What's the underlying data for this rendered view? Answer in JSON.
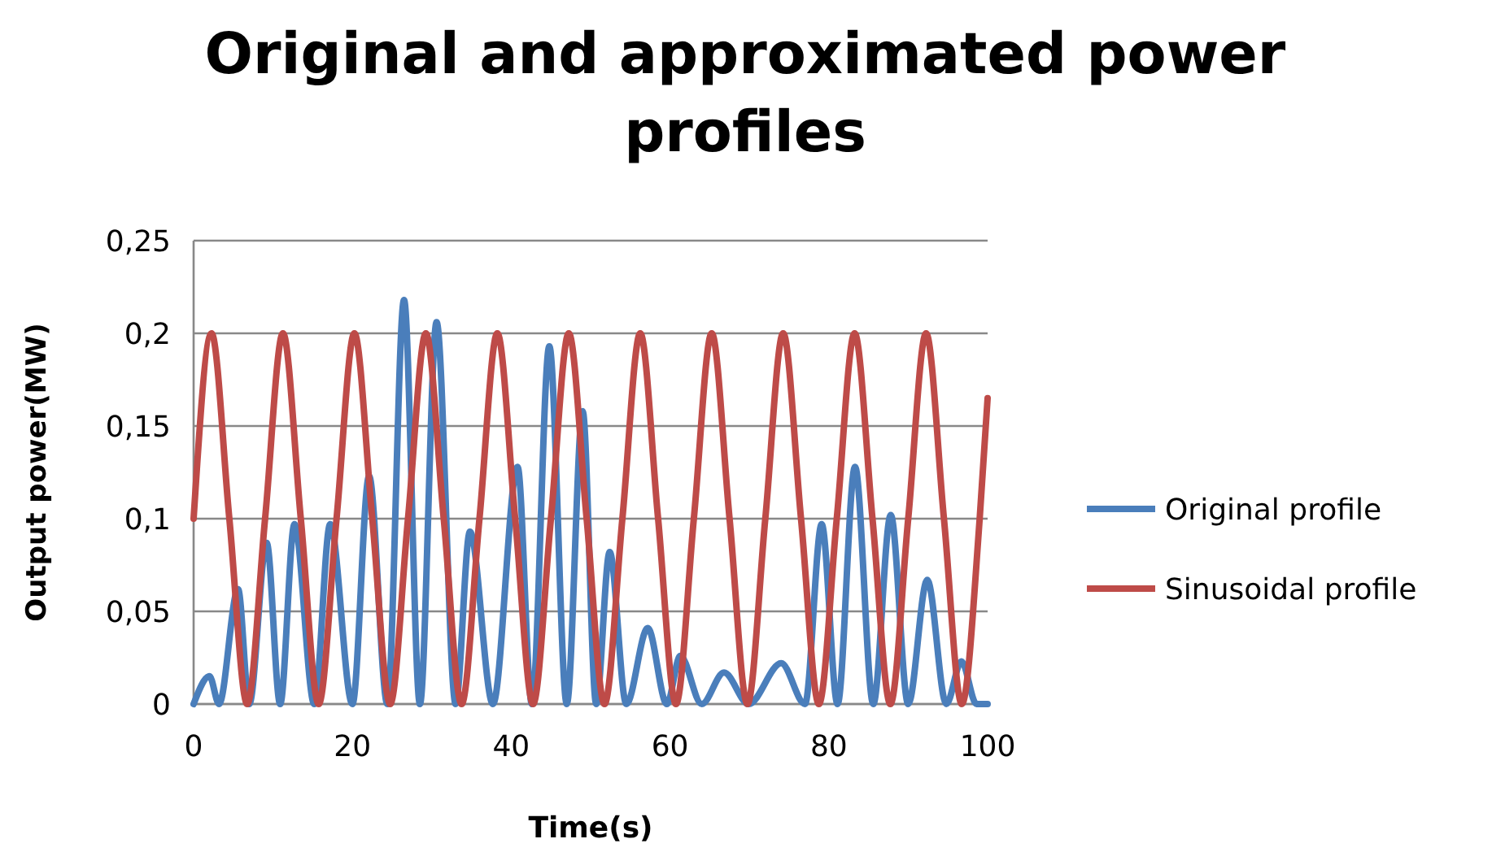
{
  "chart_data": {
    "type": "line",
    "title": "Original and approximated power profiles",
    "xlabel": "Time(s)",
    "ylabel": "Output power(MW)",
    "xlim": [
      0,
      100
    ],
    "xticks": [
      0,
      20,
      40,
      60,
      80,
      100
    ],
    "ylim": [
      0,
      0.25
    ],
    "yticks": [
      {
        "value": 0,
        "label": "0"
      },
      {
        "value": 0.05,
        "label": "0,05"
      },
      {
        "value": 0.1,
        "label": "0,1"
      },
      {
        "value": 0.15,
        "label": "0,15"
      },
      {
        "value": 0.2,
        "label": "0,2"
      },
      {
        "value": 0.25,
        "label": "0,25"
      }
    ],
    "grid": "y",
    "legend": "right",
    "marker": "none",
    "line_style": "solid",
    "series": [
      {
        "name": "Original profile",
        "color": "#4a7ebb",
        "x": [
          0,
          2.0,
          3.2,
          5.6,
          7.0,
          9.2,
          10.9,
          12.7,
          15.2,
          17.2,
          20.0,
          22.1,
          24.4,
          26.5,
          28.5,
          30.6,
          33.0,
          34.8,
          37.7,
          40.8,
          42.6,
          44.8,
          47.0,
          49.0,
          50.7,
          52.4,
          54.5,
          57.2,
          59.6,
          61.3,
          64.0,
          66.8,
          69.9,
          74.0,
          77.0,
          79.1,
          81.1,
          83.3,
          85.6,
          87.8,
          90.0,
          92.4,
          94.8,
          96.7,
          98.6,
          100
        ],
        "values": [
          0,
          0.015,
          0,
          0.062,
          0,
          0.087,
          0,
          0.097,
          0,
          0.097,
          0,
          0.123,
          0,
          0.218,
          0,
          0.206,
          0,
          0.093,
          0,
          0.128,
          0,
          0.193,
          0,
          0.158,
          0,
          0.082,
          0,
          0.041,
          0,
          0.026,
          0,
          0.017,
          0,
          0.022,
          0,
          0.097,
          0,
          0.128,
          0,
          0.102,
          0,
          0.067,
          0,
          0.023,
          0,
          0
        ]
      },
      {
        "name": "Sinusoidal profile",
        "color": "#be4b48",
        "x": [
          0,
          2.25,
          4.5,
          6.75,
          9,
          11.25,
          13.5,
          15.75,
          18,
          20.25,
          22.5,
          24.75,
          27,
          29.25,
          31.5,
          33.75,
          36,
          38.25,
          40.5,
          42.75,
          45,
          47.25,
          49.5,
          51.75,
          54,
          56.25,
          58.5,
          60.75,
          63,
          65.25,
          67.5,
          69.75,
          72,
          74.25,
          76.5,
          78.75,
          81,
          83.25,
          85.5,
          87.75,
          90,
          92.25,
          94.5,
          96.75,
          99,
          100
        ],
        "values": [
          0.1,
          0.2,
          0.1,
          0,
          0.1,
          0.2,
          0.1,
          0,
          0.1,
          0.2,
          0.1,
          0,
          0.1,
          0.2,
          0.1,
          0,
          0.1,
          0.2,
          0.1,
          0,
          0.1,
          0.2,
          0.1,
          0,
          0.1,
          0.2,
          0.1,
          0,
          0.1,
          0.2,
          0.1,
          0,
          0.1,
          0.2,
          0.1,
          0,
          0.1,
          0.2,
          0.1,
          0,
          0.1,
          0.2,
          0.1,
          0,
          0.1,
          0.165
        ]
      }
    ]
  }
}
